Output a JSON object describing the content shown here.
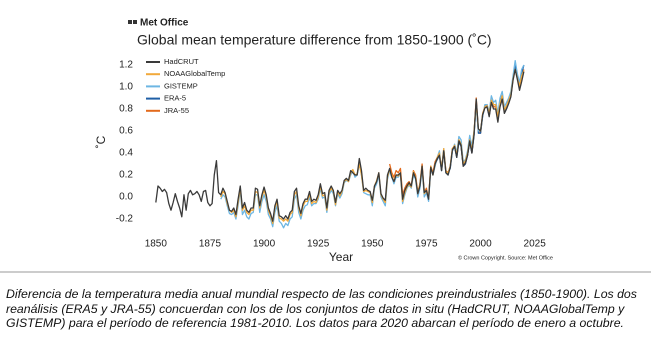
{
  "chart_data": {
    "type": "line",
    "logo_text": "Met Office",
    "title": "Global mean temperature difference from 1850-1900 (˚C)",
    "x_label": "Year",
    "y_label": "˚C",
    "source": "© Crown Copyright. Source: Met Office",
    "xlim": [
      1845,
      2027
    ],
    "xticks": [
      1850,
      1875,
      1900,
      1925,
      1950,
      1975,
      2000,
      2025
    ],
    "ylim": [
      -0.3,
      1.3
    ],
    "yticks": [
      -0.2,
      {
        "value": 0,
        "label": "0.0"
      },
      0.2,
      0.4,
      0.6,
      0.8,
      {
        "value": 1,
        "label": "1.0"
      },
      1.2
    ],
    "grid": false,
    "legend": "upper left",
    "x": [
      1850,
      1851,
      1852,
      1853,
      1854,
      1855,
      1856,
      1857,
      1858,
      1859,
      1860,
      1861,
      1862,
      1863,
      1864,
      1865,
      1866,
      1867,
      1868,
      1869,
      1870,
      1871,
      1872,
      1873,
      1874,
      1875,
      1876,
      1877,
      1878,
      1879,
      1880,
      1881,
      1882,
      1883,
      1884,
      1885,
      1886,
      1887,
      1888,
      1889,
      1890,
      1891,
      1892,
      1893,
      1894,
      1895,
      1896,
      1897,
      1898,
      1899,
      1900,
      1901,
      1902,
      1903,
      1904,
      1905,
      1906,
      1907,
      1908,
      1909,
      1910,
      1911,
      1912,
      1913,
      1914,
      1915,
      1916,
      1917,
      1918,
      1919,
      1920,
      1921,
      1922,
      1923,
      1924,
      1925,
      1926,
      1927,
      1928,
      1929,
      1930,
      1931,
      1932,
      1933,
      1934,
      1935,
      1936,
      1937,
      1938,
      1939,
      1940,
      1941,
      1942,
      1943,
      1944,
      1945,
      1946,
      1947,
      1948,
      1949,
      1950,
      1951,
      1952,
      1953,
      1954,
      1955,
      1956,
      1957,
      1958,
      1959,
      1960,
      1961,
      1962,
      1963,
      1964,
      1965,
      1966,
      1967,
      1968,
      1969,
      1970,
      1971,
      1972,
      1973,
      1974,
      1975,
      1976,
      1977,
      1978,
      1979,
      1980,
      1981,
      1982,
      1983,
      1984,
      1985,
      1986,
      1987,
      1988,
      1989,
      1990,
      1991,
      1992,
      1993,
      1994,
      1995,
      1996,
      1997,
      1998,
      1999,
      2000,
      2001,
      2002,
      2003,
      2004,
      2005,
      2006,
      2007,
      2008,
      2009,
      2010,
      2011,
      2012,
      2013,
      2014,
      2015,
      2016,
      2017,
      2018,
      2019,
      2020
    ],
    "series": [
      {
        "name": "HadCRUT",
        "color": "#3a3a3a",
        "values": [
          -0.05,
          0.1,
          0.08,
          0.05,
          0.07,
          0.04,
          -0.06,
          -0.12,
          -0.05,
          0.03,
          -0.04,
          -0.1,
          -0.18,
          0.02,
          -0.12,
          0.03,
          0.06,
          0.02,
          0.03,
          0.05,
          0.02,
          -0.04,
          0.05,
          0.06,
          -0.05,
          -0.08,
          -0.06,
          0.2,
          0.33,
          0.04,
          0.02,
          0.08,
          0.04,
          -0.04,
          -0.12,
          -0.13,
          -0.1,
          -0.16,
          -0.02,
          0.1,
          -0.1,
          -0.05,
          -0.12,
          -0.14,
          -0.1,
          -0.1,
          0.08,
          0.07,
          -0.08,
          0.02,
          0.09,
          0.02,
          -0.1,
          -0.15,
          -0.22,
          -0.08,
          -0.02,
          -0.17,
          -0.18,
          -0.2,
          -0.17,
          -0.2,
          -0.14,
          -0.12,
          0.05,
          0.08,
          -0.08,
          -0.15,
          -0.06,
          -0.02,
          -0.02,
          0.05,
          -0.04,
          -0.02,
          -0.03,
          0.02,
          0.12,
          0.03,
          0.04,
          -0.1,
          0.06,
          0.1,
          0.06,
          -0.05,
          0.06,
          0.03,
          0.06,
          0.15,
          0.17,
          0.15,
          0.24,
          0.22,
          0.2,
          0.2,
          0.35,
          0.24,
          0.06,
          0.08,
          0.06,
          0.05,
          -0.03,
          0.1,
          0.14,
          0.22,
          0.03,
          -0.01,
          -0.03,
          0.2,
          0.26,
          0.18,
          0.14,
          0.2,
          0.2,
          0.22,
          -0.02,
          0.06,
          0.1,
          0.13,
          0.1,
          0.22,
          0.17,
          0.03,
          0.1,
          0.28,
          0.04,
          0.06,
          -0.02,
          0.27,
          0.2,
          0.3,
          0.35,
          0.38,
          0.24,
          0.42,
          0.22,
          0.2,
          0.27,
          0.43,
          0.46,
          0.36,
          0.51,
          0.47,
          0.28,
          0.31,
          0.38,
          0.51,
          0.4,
          0.57,
          0.89,
          0.62,
          0.6,
          0.75,
          0.81,
          0.82,
          0.73,
          0.86,
          0.8,
          0.8,
          0.68,
          0.82,
          0.89,
          0.76,
          0.8,
          0.85,
          0.91,
          1.06,
          1.16,
          1.07,
          0.97,
          1.05,
          1.14
        ]
      },
      {
        "name": "NOAAGlobalTemp",
        "color": "#f2a93b",
        "values": [
          null,
          null,
          null,
          null,
          null,
          null,
          null,
          null,
          null,
          null,
          null,
          null,
          null,
          null,
          null,
          null,
          null,
          null,
          null,
          null,
          null,
          null,
          null,
          null,
          null,
          null,
          null,
          null,
          null,
          null,
          0.0,
          0.05,
          0.03,
          -0.06,
          -0.12,
          -0.14,
          -0.12,
          -0.18,
          -0.05,
          0.08,
          -0.12,
          -0.08,
          -0.14,
          -0.16,
          -0.12,
          -0.12,
          0.05,
          0.04,
          -0.1,
          0.0,
          0.06,
          0.0,
          -0.12,
          -0.17,
          -0.24,
          -0.1,
          -0.04,
          -0.19,
          -0.2,
          -0.22,
          -0.2,
          -0.22,
          -0.16,
          -0.14,
          0.02,
          0.05,
          -0.1,
          -0.17,
          -0.08,
          -0.04,
          -0.04,
          0.03,
          -0.06,
          -0.04,
          -0.05,
          0.0,
          0.1,
          0.01,
          0.02,
          -0.12,
          0.04,
          0.08,
          0.05,
          -0.07,
          0.05,
          0.01,
          0.05,
          0.14,
          0.16,
          0.14,
          0.22,
          0.25,
          0.2,
          0.21,
          0.3,
          0.2,
          0.05,
          0.06,
          0.05,
          0.04,
          -0.05,
          0.1,
          0.15,
          0.22,
          0.02,
          -0.02,
          -0.05,
          0.18,
          0.25,
          0.2,
          0.14,
          0.2,
          0.19,
          0.22,
          -0.04,
          0.04,
          0.09,
          0.12,
          0.09,
          0.23,
          0.18,
          0.03,
          0.12,
          0.28,
          0.03,
          0.06,
          -0.01,
          0.28,
          0.2,
          0.3,
          0.36,
          0.4,
          0.25,
          0.44,
          0.23,
          0.22,
          0.28,
          0.44,
          0.47,
          0.38,
          0.52,
          0.48,
          0.3,
          0.33,
          0.4,
          0.52,
          0.42,
          0.6,
          0.85,
          0.62,
          0.6,
          0.76,
          0.82,
          0.83,
          0.76,
          0.88,
          0.84,
          0.84,
          0.73,
          0.85,
          0.92,
          0.79,
          0.83,
          0.88,
          0.93,
          1.07,
          1.16,
          1.08,
          1.01,
          1.1,
          1.15
        ]
      },
      {
        "name": "GISTEMP",
        "color": "#6db6e3",
        "values": [
          null,
          null,
          null,
          null,
          null,
          null,
          null,
          null,
          null,
          null,
          null,
          null,
          null,
          null,
          null,
          null,
          null,
          null,
          null,
          null,
          null,
          null,
          null,
          null,
          null,
          null,
          null,
          null,
          null,
          null,
          -0.02,
          0.02,
          0.0,
          -0.08,
          -0.15,
          -0.16,
          -0.14,
          -0.2,
          -0.08,
          0.06,
          -0.16,
          -0.12,
          -0.18,
          -0.2,
          -0.15,
          -0.14,
          0.02,
          0.02,
          -0.14,
          -0.04,
          0.02,
          -0.04,
          -0.16,
          -0.2,
          -0.27,
          -0.14,
          -0.08,
          -0.22,
          -0.24,
          -0.28,
          -0.24,
          -0.26,
          -0.2,
          -0.18,
          -0.02,
          0.02,
          -0.14,
          -0.2,
          -0.12,
          -0.08,
          -0.07,
          0.0,
          -0.08,
          -0.06,
          -0.06,
          -0.02,
          0.08,
          -0.01,
          0.0,
          -0.14,
          0.02,
          0.06,
          0.03,
          -0.08,
          0.03,
          -0.01,
          0.03,
          0.13,
          0.15,
          0.14,
          0.2,
          0.24,
          0.18,
          0.2,
          0.3,
          0.2,
          0.04,
          0.03,
          0.02,
          0.02,
          -0.08,
          0.08,
          0.12,
          0.2,
          0.0,
          -0.04,
          -0.08,
          0.16,
          0.24,
          0.18,
          0.12,
          0.18,
          0.18,
          0.21,
          -0.06,
          0.02,
          0.08,
          0.11,
          0.08,
          0.2,
          0.16,
          0.0,
          0.08,
          0.26,
          0.0,
          0.04,
          -0.04,
          0.26,
          0.2,
          0.28,
          0.36,
          0.42,
          0.24,
          0.44,
          0.22,
          0.2,
          0.28,
          0.42,
          0.48,
          0.4,
          0.55,
          0.52,
          0.32,
          0.34,
          0.42,
          0.56,
          0.46,
          0.6,
          0.82,
          0.6,
          0.6,
          0.74,
          0.84,
          0.84,
          0.78,
          0.92,
          0.86,
          0.88,
          0.76,
          0.9,
          0.96,
          0.82,
          0.86,
          0.9,
          0.96,
          1.1,
          1.24,
          1.12,
          1.04,
          1.16,
          1.2
        ]
      },
      {
        "name": "ERA-5",
        "color": "#1f5fa6",
        "values": [
          null,
          null,
          null,
          null,
          null,
          null,
          null,
          null,
          null,
          null,
          null,
          null,
          null,
          null,
          null,
          null,
          null,
          null,
          null,
          null,
          null,
          null,
          null,
          null,
          null,
          null,
          null,
          null,
          null,
          null,
          null,
          null,
          null,
          null,
          null,
          null,
          null,
          null,
          null,
          null,
          null,
          null,
          null,
          null,
          null,
          null,
          null,
          null,
          null,
          null,
          null,
          null,
          null,
          null,
          null,
          null,
          null,
          null,
          null,
          null,
          null,
          null,
          null,
          null,
          null,
          null,
          null,
          null,
          null,
          null,
          null,
          null,
          null,
          null,
          null,
          null,
          null,
          null,
          null,
          null,
          null,
          null,
          null,
          null,
          null,
          null,
          null,
          null,
          null,
          null,
          null,
          null,
          null,
          null,
          null,
          null,
          null,
          null,
          null,
          null,
          null,
          null,
          null,
          null,
          null,
          null,
          null,
          null,
          null,
          null,
          null,
          null,
          null,
          null,
          null,
          null,
          null,
          null,
          null,
          null,
          null,
          null,
          null,
          null,
          null,
          null,
          null,
          null,
          null,
          0.3,
          0.34,
          0.38,
          0.24,
          0.42,
          0.22,
          0.22,
          0.26,
          0.42,
          0.46,
          0.36,
          0.5,
          0.46,
          0.28,
          0.3,
          0.38,
          0.5,
          0.4,
          0.56,
          0.86,
          0.58,
          0.58,
          0.74,
          0.82,
          0.82,
          0.74,
          0.88,
          0.84,
          0.84,
          0.72,
          0.86,
          0.92,
          0.78,
          0.82,
          0.88,
          0.92,
          1.08,
          1.2,
          1.1,
          1.02,
          1.12,
          1.2
        ]
      },
      {
        "name": "JRA-55",
        "color": "#e36a1c",
        "values": [
          null,
          null,
          null,
          null,
          null,
          null,
          null,
          null,
          null,
          null,
          null,
          null,
          null,
          null,
          null,
          null,
          null,
          null,
          null,
          null,
          null,
          null,
          null,
          null,
          null,
          null,
          null,
          null,
          null,
          null,
          null,
          null,
          null,
          null,
          null,
          null,
          null,
          null,
          null,
          null,
          null,
          null,
          null,
          null,
          null,
          null,
          null,
          null,
          null,
          null,
          null,
          null,
          null,
          null,
          null,
          null,
          null,
          null,
          null,
          null,
          null,
          null,
          null,
          null,
          null,
          null,
          null,
          null,
          null,
          null,
          null,
          null,
          null,
          null,
          null,
          null,
          null,
          null,
          null,
          null,
          null,
          null,
          null,
          null,
          null,
          null,
          null,
          null,
          null,
          null,
          null,
          null,
          null,
          null,
          null,
          null,
          null,
          null,
          null,
          null,
          null,
          null,
          null,
          null,
          null,
          null,
          null,
          null,
          0.3,
          0.22,
          0.18,
          0.24,
          0.22,
          0.26,
          0.02,
          0.08,
          0.12,
          0.14,
          0.1,
          0.24,
          0.2,
          0.04,
          0.12,
          0.3,
          0.04,
          0.08,
          -0.02,
          0.28,
          0.22,
          0.32,
          0.36,
          0.38,
          0.26,
          0.42,
          0.24,
          0.22,
          0.28,
          0.44,
          0.46,
          0.38,
          0.52,
          0.46,
          0.28,
          0.3,
          0.38,
          0.52,
          0.4,
          0.58,
          0.9,
          0.6,
          0.58,
          0.76,
          0.82,
          0.84,
          0.74,
          0.88,
          0.82,
          0.82,
          0.7,
          0.86,
          0.92,
          0.78,
          0.82,
          0.88,
          0.92,
          1.08,
          1.2,
          1.08,
          1.0,
          1.1,
          1.16
        ]
      }
    ]
  },
  "caption": "Diferencia de la temperatura media anual mundial respecto de las condiciones preindustriales (1850-1900). Los dos reanálisis (ERA5 y JRA-55) concuerdan con los de los conjuntos de datos in situ (HadCRUT, NOAAGlobalTemp y GISTEMP) para el período de referencia 1981-2010. Los datos para 2020 abarcan el período de enero a octubre."
}
